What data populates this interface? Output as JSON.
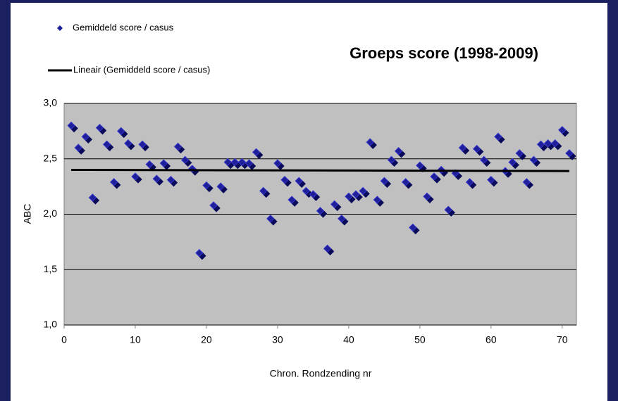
{
  "chart_data": {
    "type": "scatter",
    "title": "Groeps score (1998-2009)",
    "xlabel": "Chron. Rondzending nr",
    "ylabel": "ABC",
    "xlim": [
      0,
      72
    ],
    "ylim": [
      1.0,
      3.0
    ],
    "xticks": [
      0,
      10,
      20,
      30,
      40,
      50,
      60,
      70
    ],
    "yticks": [
      {
        "value": 1.0,
        "label": "1,0"
      },
      {
        "value": 1.5,
        "label": "1,5"
      },
      {
        "value": 2.0,
        "label": "2,0"
      },
      {
        "value": 2.5,
        "label": "2,5"
      },
      {
        "value": 3.0,
        "label": "3,0"
      }
    ],
    "grid": true,
    "legend": "top-left",
    "series": [
      {
        "name": "Gemiddeld score / casus",
        "color": "#1f1f9a",
        "x": [
          1,
          2,
          3,
          4,
          5,
          6,
          7,
          8,
          9,
          10,
          11,
          12,
          13,
          14,
          15,
          16,
          17,
          18,
          19,
          20,
          21,
          22,
          23,
          24,
          25,
          26,
          27,
          28,
          29,
          30,
          31,
          32,
          33,
          34,
          35,
          36,
          37,
          38,
          39,
          40,
          41,
          42,
          43,
          44,
          45,
          46,
          47,
          48,
          49,
          50,
          51,
          52,
          53,
          54,
          55,
          56,
          57,
          58,
          59,
          60,
          61,
          62,
          63,
          64,
          65,
          66,
          67,
          68,
          69,
          70,
          71
        ],
        "values": [
          2.8,
          2.6,
          2.7,
          2.15,
          2.78,
          2.63,
          2.29,
          2.75,
          2.64,
          2.34,
          2.63,
          2.45,
          2.32,
          2.46,
          2.31,
          2.61,
          2.49,
          2.41,
          1.65,
          2.26,
          2.08,
          2.25,
          2.47,
          2.47,
          2.47,
          2.46,
          2.56,
          2.21,
          1.96,
          2.46,
          2.31,
          2.13,
          2.3,
          2.21,
          2.18,
          2.03,
          1.69,
          2.09,
          1.96,
          2.16,
          2.18,
          2.21,
          2.65,
          2.13,
          2.3,
          2.49,
          2.57,
          2.29,
          1.88,
          2.44,
          2.16,
          2.34,
          2.4,
          2.04,
          2.37,
          2.6,
          2.29,
          2.59,
          2.49,
          2.31,
          2.7,
          2.39,
          2.47,
          2.55,
          2.29,
          2.49,
          2.63,
          2.64,
          2.64,
          2.76,
          2.55
        ]
      },
      {
        "name": "Lineair (Gemiddeld score / casus)",
        "color": "#000000",
        "line": true,
        "x": [
          1,
          71
        ],
        "values": [
          2.4,
          2.39
        ]
      }
    ]
  }
}
